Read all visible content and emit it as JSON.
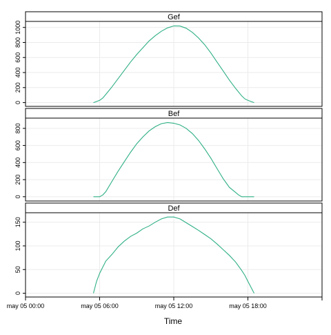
{
  "chart_data": {
    "type": "line",
    "xlabel": "Time",
    "x_range": [
      "may 05 00:00",
      "may 06 00:00"
    ],
    "x_ticks": [
      "may 05 00:00",
      "may 05 06:00",
      "may 05 12:00",
      "may 05 18:00"
    ],
    "grid": true,
    "colors": {
      "line": "#2eaf86",
      "grid": "#ebebeb",
      "strip": "#ffffff",
      "frame": "#000000"
    },
    "panels": [
      {
        "title": "Gef",
        "ylim": [
          -50,
          1080
        ],
        "y_ticks": [
          0,
          200,
          400,
          600,
          800,
          1000
        ],
        "series": [
          {
            "x": [
              "05:30",
              "06:00",
              "06:15",
              "06:30",
              "07:00",
              "07:30",
              "08:00",
              "08:30",
              "09:00",
              "09:30",
              "10:00",
              "10:30",
              "11:00",
              "11:30",
              "12:00",
              "12:30",
              "13:00",
              "13:30",
              "14:00",
              "14:30",
              "15:00",
              "15:30",
              "16:00",
              "16:30",
              "17:00",
              "17:30",
              "17:45",
              "18:00",
              "18:30"
            ],
            "y": [
              0,
              30,
              60,
              110,
              210,
              320,
              430,
              540,
              640,
              730,
              820,
              890,
              950,
              995,
              1020,
              1018,
              990,
              935,
              860,
              770,
              660,
              540,
              420,
              300,
              190,
              90,
              50,
              30,
              0
            ]
          }
        ]
      },
      {
        "title": "Bef",
        "ylim": [
          -50,
          920
        ],
        "y_ticks": [
          0,
          200,
          400,
          600,
          800
        ],
        "series": [
          {
            "x": [
              "05:30",
              "06:00",
              "06:15",
              "06:30",
              "07:00",
              "07:30",
              "08:00",
              "08:30",
              "09:00",
              "09:30",
              "10:00",
              "10:30",
              "11:00",
              "11:30",
              "12:00",
              "12:30",
              "13:00",
              "13:30",
              "14:00",
              "14:30",
              "15:00",
              "15:30",
              "16:00",
              "16:30",
              "17:00",
              "17:15",
              "17:30",
              "17:45",
              "18:00",
              "18:30"
            ],
            "y": [
              0,
              0,
              20,
              60,
              180,
              300,
              410,
              520,
              620,
              700,
              770,
              820,
              855,
              868,
              860,
              840,
              800,
              740,
              660,
              560,
              450,
              330,
              210,
              110,
              50,
              20,
              0,
              0,
              0,
              0
            ]
          }
        ]
      },
      {
        "title": "Def",
        "ylim": [
          -8,
          170
        ],
        "y_ticks": [
          0,
          50,
          100,
          150
        ],
        "series": [
          {
            "x": [
              "05:30",
              "05:45",
              "06:00",
              "06:15",
              "06:30",
              "07:00",
              "07:30",
              "08:00",
              "08:30",
              "09:00",
              "09:30",
              "10:00",
              "10:30",
              "11:00",
              "11:30",
              "12:00",
              "12:30",
              "13:00",
              "13:30",
              "14:00",
              "14:30",
              "15:00",
              "15:30",
              "16:00",
              "16:30",
              "17:00",
              "17:30",
              "17:45",
              "18:00",
              "18:30"
            ],
            "y": [
              0,
              25,
              42,
              55,
              68,
              82,
              98,
              110,
              120,
              127,
              136,
              142,
              150,
              157,
              161,
              161,
              157,
              149,
              141,
              133,
              124,
              115,
              104,
              92,
              80,
              66,
              48,
              38,
              25,
              0
            ]
          }
        ]
      }
    ]
  }
}
